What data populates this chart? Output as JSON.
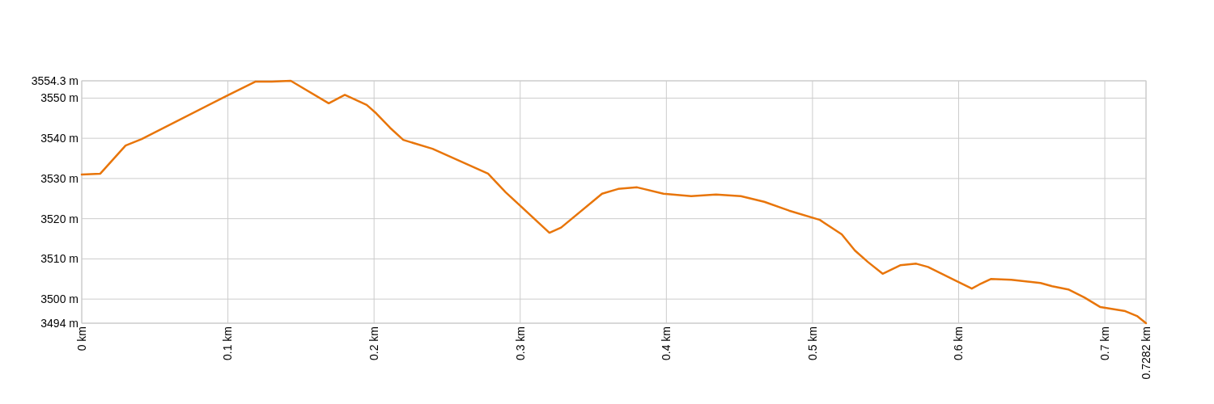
{
  "chart_data": {
    "type": "line",
    "x": [
      0,
      0.0127,
      0.03,
      0.041,
      0.1,
      0.119,
      0.13,
      0.143,
      0.169,
      0.18,
      0.195,
      0.2015,
      0.211,
      0.22,
      0.24,
      0.278,
      0.29,
      0.32,
      0.328,
      0.356,
      0.367,
      0.38,
      0.398,
      0.417,
      0.434,
      0.451,
      0.467,
      0.484,
      0.505,
      0.52,
      0.529,
      0.538,
      0.548,
      0.56,
      0.571,
      0.579,
      0.598,
      0.609,
      0.614,
      0.622,
      0.636,
      0.656,
      0.664,
      0.675,
      0.686,
      0.697,
      0.714,
      0.722,
      0.7282
    ],
    "series": [
      {
        "color": "#e8750a",
        "values": [
          3531.0,
          3531.2,
          3538.2,
          3539.8,
          3550.7,
          3554.1,
          3554.1,
          3554.3,
          3548.7,
          3550.8,
          3548.3,
          3546.2,
          3542.6,
          3539.6,
          3537.4,
          3531.2,
          3526.6,
          3516.5,
          3517.8,
          3526.2,
          3527.4,
          3527.8,
          3526.2,
          3525.6,
          3526.0,
          3525.6,
          3524.2,
          3522.0,
          3519.7,
          3516.1,
          3512.1,
          3509.2,
          3506.3,
          3508.4,
          3508.8,
          3508.0,
          3504.6,
          3502.6,
          3503.6,
          3505.0,
          3504.8,
          3504.0,
          3503.2,
          3502.4,
          3500.4,
          3498.0,
          3497.0,
          3495.8,
          3494.0
        ]
      }
    ],
    "xlim": [
      0,
      0.7282
    ],
    "xticks": [
      {
        "value": 0,
        "label": "0 km"
      },
      {
        "value": 0.1,
        "label": "0.1 km"
      },
      {
        "value": 0.2,
        "label": "0.2 km"
      },
      {
        "value": 0.3,
        "label": "0.3 km"
      },
      {
        "value": 0.4,
        "label": "0.4 km"
      },
      {
        "value": 0.5,
        "label": "0.5 km"
      },
      {
        "value": 0.6,
        "label": "0.6 km"
      },
      {
        "value": 0.7,
        "label": "0.7 km"
      },
      {
        "value": 0.7282,
        "label": "0.7282 km"
      }
    ],
    "ylim": [
      3494,
      3554.3
    ],
    "yticks": [
      {
        "value": 3494,
        "label": "3494 m"
      },
      {
        "value": 3500,
        "label": "3500 m"
      },
      {
        "value": 3510,
        "label": "3510 m"
      },
      {
        "value": 3520,
        "label": "3520 m"
      },
      {
        "value": 3530,
        "label": "3530 m"
      },
      {
        "value": 3540,
        "label": "3540 m"
      },
      {
        "value": 3550,
        "label": "3550 m"
      },
      {
        "value": 3554.3,
        "label": "3554.3 m"
      }
    ],
    "grid": true,
    "line_style": "solid",
    "marker": "none"
  }
}
